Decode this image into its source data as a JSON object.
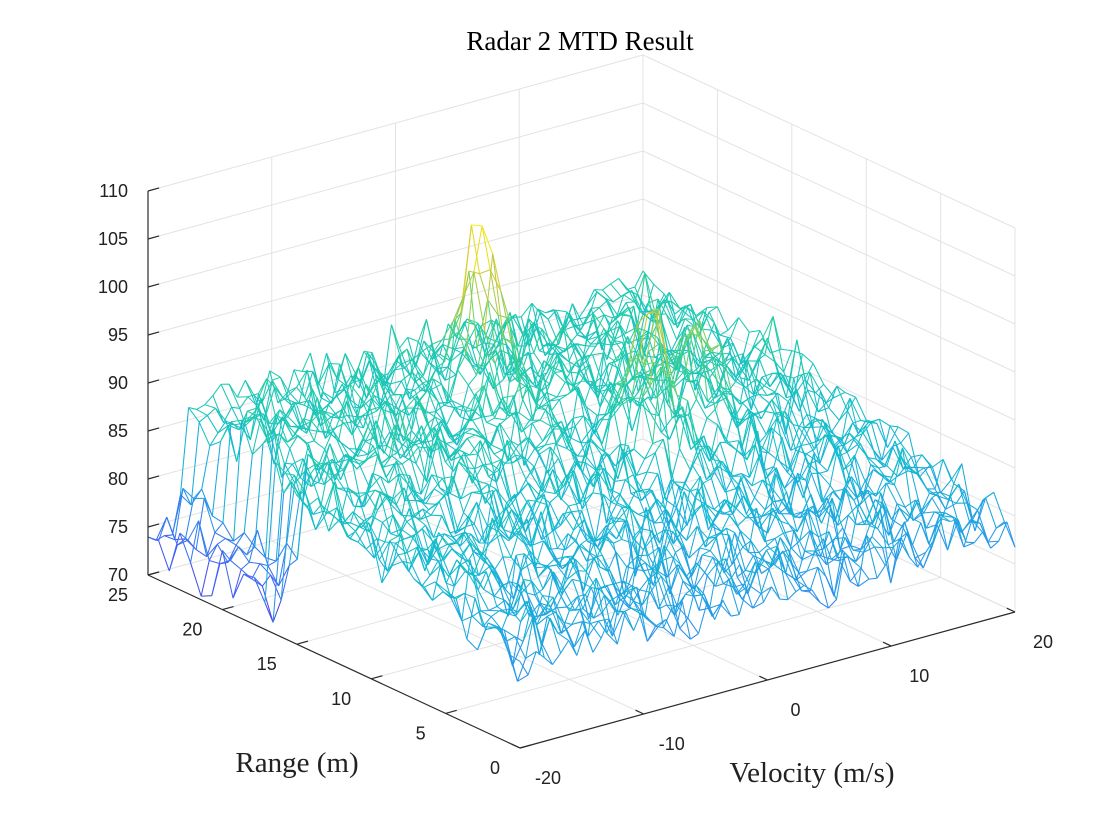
{
  "chart_data": {
    "type": "mesh",
    "title": "Radar 2 MTD Result",
    "xlabel": "Velocity (m/s)",
    "ylabel": "Range (m)",
    "zlabel": "",
    "xlim": [
      -20,
      20
    ],
    "ylim": [
      0,
      25
    ],
    "zlim": [
      70,
      110
    ],
    "x_ticks": [
      "-20",
      "-10",
      "0",
      "10",
      "20"
    ],
    "y_ticks": [
      "0",
      "5",
      "10",
      "15",
      "20",
      "25"
    ],
    "z_ticks": [
      "70",
      "75",
      "80",
      "85",
      "90",
      "95",
      "100",
      "105",
      "110"
    ],
    "grid": true,
    "colormap": "parula",
    "noise_floor": {
      "far_range_level": 86,
      "near_range_level": 79,
      "low_velocity_far_range_level": 73
    },
    "peaks": [
      {
        "velocity": 1,
        "range": 20,
        "value": 102
      },
      {
        "velocity": 5,
        "range": 12,
        "value": 99
      },
      {
        "velocity": 10,
        "range": 13,
        "value": 95
      }
    ],
    "colors": {
      "low": "#3e26a8",
      "mid": "#1ac7c2",
      "high": "#f9fb0e"
    }
  }
}
